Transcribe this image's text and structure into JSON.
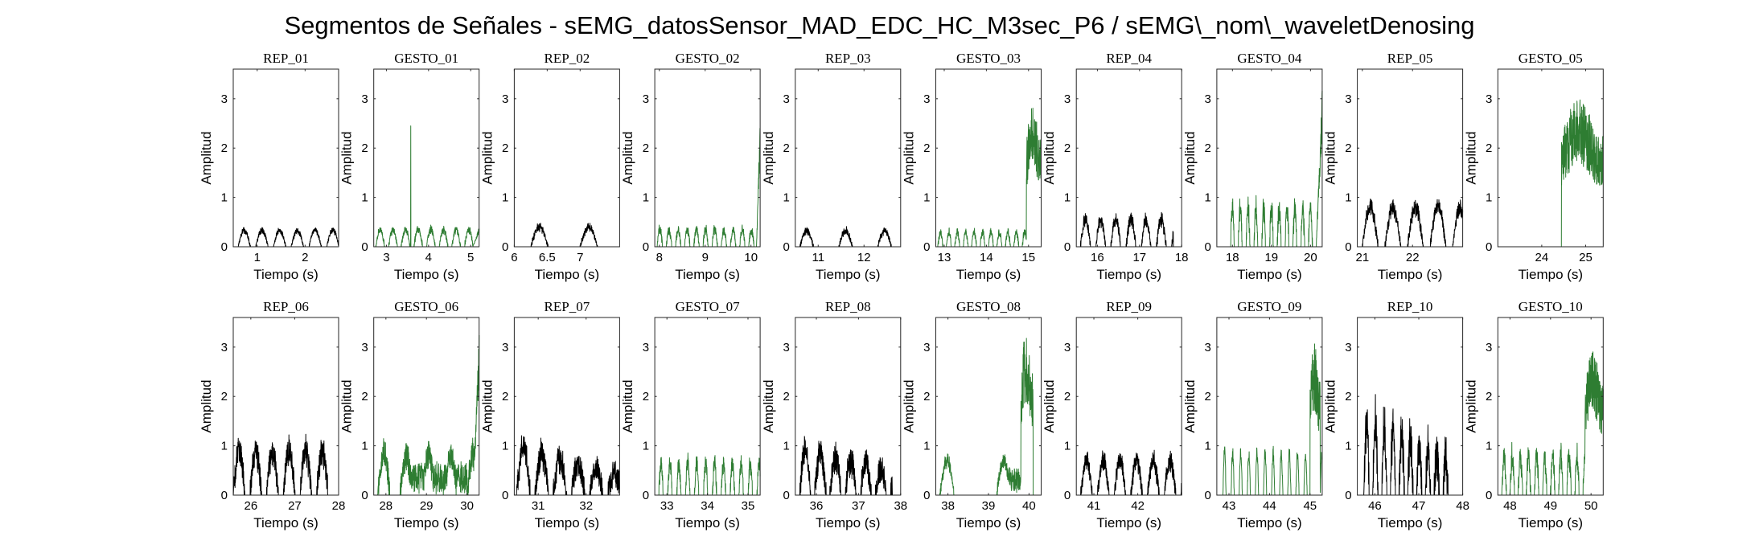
{
  "title": "Segmentos de Señales - sEMG_datosSensor_MAD_EDC_HC_M3sec_P6 / sEMG\\_nom\\_waveletDenosing",
  "colors": {
    "rep": "#000000",
    "gesto": "#2e7d32"
  },
  "chart_data": [
    {
      "type": "line",
      "title": "REP_01",
      "xlabel": "Tiempo (s)",
      "ylabel": "Amplitud",
      "xlim": [
        0.5,
        2.7
      ],
      "ylim": [
        0,
        3.6
      ],
      "xticks": [
        1,
        2
      ],
      "yticks": [
        0,
        1,
        2,
        3
      ],
      "series": [
        {
          "name": "",
          "color": "rep",
          "pattern": {
            "kind": "pulses",
            "start": 0.6,
            "period": 0.37,
            "amp": 0.33,
            "duty": 0.7,
            "noise": 0.03
          }
        }
      ]
    },
    {
      "type": "line",
      "title": "GESTO_01",
      "xlabel": "Tiempo (s)",
      "ylabel": "Amplitud",
      "xlim": [
        2.7,
        5.2
      ],
      "ylim": [
        0,
        3.6
      ],
      "xticks": [
        3,
        4,
        5
      ],
      "yticks": [
        0,
        1,
        2,
        3
      ],
      "series": [
        {
          "name": "",
          "color": "gesto",
          "pattern": {
            "kind": "pulses",
            "start": 2.75,
            "period": 0.3,
            "amp": 0.35,
            "duty": 0.7,
            "noise": 0.05,
            "spikes": [
              [
                3.58,
                2.45
              ]
            ],
            "tailStart": 5.05,
            "tailAmp": 0.4
          }
        }
      ]
    },
    {
      "type": "line",
      "title": "REP_02",
      "xlabel": "Tiempo (s)",
      "ylabel": "Amplitud",
      "xlim": [
        6.0,
        7.6
      ],
      "ylim": [
        0,
        3.6
      ],
      "xticks": [
        6,
        6.5,
        7
      ],
      "yticks": [
        0,
        1,
        2,
        3
      ],
      "series": [
        {
          "name": "",
          "color": "rep",
          "pattern": {
            "kind": "pulses",
            "start": 6.25,
            "period": 0.75,
            "amp": 0.4,
            "duty": 0.35,
            "noise": 0.05
          }
        }
      ]
    },
    {
      "type": "line",
      "title": "GESTO_02",
      "xlabel": "Tiempo (s)",
      "ylabel": "Amplitud",
      "xlim": [
        7.9,
        10.2
      ],
      "ylim": [
        0,
        3.6
      ],
      "xticks": [
        8,
        9,
        10
      ],
      "yticks": [
        0,
        1,
        2,
        3
      ],
      "series": [
        {
          "name": "",
          "color": "gesto",
          "pattern": {
            "kind": "pulses",
            "start": 7.95,
            "period": 0.2,
            "amp": 0.35,
            "duty": 0.6,
            "noise": 0.07,
            "tailStart": 10.12,
            "tailAmp": 2.7
          }
        }
      ]
    },
    {
      "type": "line",
      "title": "REP_03",
      "xlabel": "Tiempo (s)",
      "ylabel": "Amplitud",
      "xlim": [
        10.5,
        12.8
      ],
      "ylim": [
        0,
        3.6
      ],
      "xticks": [
        11,
        12
      ],
      "yticks": [
        0,
        1,
        2,
        3
      ],
      "series": [
        {
          "name": "",
          "color": "rep",
          "pattern": {
            "kind": "pulses",
            "start": 10.6,
            "period": 0.85,
            "amp": 0.33,
            "duty": 0.35,
            "noise": 0.05
          }
        }
      ]
    },
    {
      "type": "line",
      "title": "GESTO_03",
      "xlabel": "Tiempo (s)",
      "ylabel": "Amplitud",
      "xlim": [
        12.8,
        15.3
      ],
      "ylim": [
        0,
        3.6
      ],
      "xticks": [
        13,
        14,
        15
      ],
      "yticks": [
        0,
        1,
        2,
        3
      ],
      "series": [
        {
          "name": "",
          "color": "gesto",
          "pattern": {
            "kind": "pulses",
            "start": 12.85,
            "period": 0.2,
            "amp": 0.3,
            "duty": 0.6,
            "noise": 0.06,
            "burst": [
              14.95,
              15.3,
              2.9
            ]
          }
        }
      ]
    },
    {
      "type": "line",
      "title": "REP_04",
      "xlabel": "Tiempo (s)",
      "ylabel": "Amplitud",
      "xlim": [
        15.5,
        18.0
      ],
      "ylim": [
        0,
        3.6
      ],
      "xticks": [
        16,
        17,
        18
      ],
      "yticks": [
        0,
        1,
        2,
        3
      ],
      "series": [
        {
          "name": "",
          "color": "rep",
          "pattern": {
            "kind": "pulses",
            "start": 15.6,
            "period": 0.36,
            "amp": 0.55,
            "duty": 0.65,
            "noise": 0.1,
            "end": 17.8
          }
        }
      ]
    },
    {
      "type": "line",
      "title": "GESTO_04",
      "xlabel": "Tiempo (s)",
      "ylabel": "Amplitud",
      "xlim": [
        17.6,
        20.3
      ],
      "ylim": [
        0,
        3.6
      ],
      "xticks": [
        18,
        19,
        20
      ],
      "yticks": [
        0,
        1,
        2,
        3
      ],
      "series": [
        {
          "name": "",
          "color": "gesto",
          "pattern": {
            "kind": "pulses",
            "start": 17.95,
            "period": 0.2,
            "amp": 0.8,
            "duty": 0.5,
            "noise": 0.2,
            "tailStart": 20.15,
            "tailAmp": 3.3
          }
        }
      ]
    },
    {
      "type": "line",
      "title": "REP_05",
      "xlabel": "Tiempo (s)",
      "ylabel": "Amplitud",
      "xlim": [
        20.9,
        23.0
      ],
      "ylim": [
        0,
        3.6
      ],
      "xticks": [
        21,
        22
      ],
      "yticks": [
        0,
        1,
        2,
        3
      ],
      "series": [
        {
          "name": "",
          "color": "rep",
          "pattern": {
            "kind": "pulses",
            "start": 21.0,
            "period": 0.45,
            "amp": 0.8,
            "duty": 0.7,
            "noise": 0.1
          }
        }
      ]
    },
    {
      "type": "line",
      "title": "GESTO_05",
      "xlabel": "Tiempo (s)",
      "ylabel": "Amplitud",
      "xlim": [
        23.0,
        25.4
      ],
      "ylim": [
        0,
        3.6
      ],
      "xticks": [
        24,
        25
      ],
      "yticks": [
        0,
        1,
        2,
        3
      ],
      "series": [
        {
          "name": "",
          "color": "gesto",
          "pattern": {
            "kind": "pulses",
            "start": 23.0,
            "period": 0.3,
            "amp": 0.0,
            "duty": 0.5,
            "noise": 0.0,
            "burst": [
              24.45,
              25.4,
              3.0
            ]
          }
        }
      ]
    },
    {
      "type": "line",
      "title": "REP_06",
      "xlabel": "Tiempo (s)",
      "ylabel": "Amplitud",
      "xlim": [
        25.6,
        28.0
      ],
      "ylim": [
        0,
        3.6
      ],
      "xticks": [
        26,
        27,
        28
      ],
      "yticks": [
        0,
        1,
        2,
        3
      ],
      "series": [
        {
          "name": "",
          "color": "rep",
          "pattern": {
            "kind": "pulses",
            "start": 25.6,
            "period": 0.38,
            "amp": 0.9,
            "duty": 0.7,
            "noise": 0.25,
            "end": 27.75
          }
        }
      ]
    },
    {
      "type": "line",
      "title": "GESTO_06",
      "xlabel": "Tiempo (s)",
      "ylabel": "Amplitud",
      "xlim": [
        27.7,
        30.3
      ],
      "ylim": [
        0,
        3.6
      ],
      "xticks": [
        28,
        29,
        30
      ],
      "yticks": [
        0,
        1,
        2,
        3
      ],
      "series": [
        {
          "name": "",
          "color": "gesto",
          "pattern": {
            "kind": "pulses",
            "start": 27.8,
            "period": 0.55,
            "amp": 0.8,
            "duty": 0.55,
            "noise": 0.25,
            "noiseBand": [
              28.6,
              30.0,
              0.6
            ],
            "tailStart": 30.15,
            "tailAmp": 3.3
          }
        }
      ]
    },
    {
      "type": "line",
      "title": "REP_07",
      "xlabel": "Tiempo (s)",
      "ylabel": "Amplitud",
      "xlim": [
        30.5,
        32.7
      ],
      "ylim": [
        0,
        3.6
      ],
      "xticks": [
        31,
        32
      ],
      "yticks": [
        0,
        1,
        2,
        3
      ],
      "series": [
        {
          "name": "",
          "color": "rep",
          "pattern": {
            "kind": "pulses",
            "start": 30.55,
            "period": 0.38,
            "amp": 1.0,
            "duty": 0.75,
            "noise": 0.25,
            "decay": 0.85
          }
        }
      ]
    },
    {
      "type": "line",
      "title": "GESTO_07",
      "xlabel": "Tiempo (s)",
      "ylabel": "Amplitud",
      "xlim": [
        32.7,
        35.3
      ],
      "ylim": [
        0,
        3.6
      ],
      "xticks": [
        33,
        34,
        35
      ],
      "yticks": [
        0,
        1,
        2,
        3
      ],
      "series": [
        {
          "name": "",
          "color": "gesto",
          "pattern": {
            "kind": "pulses",
            "start": 32.8,
            "period": 0.22,
            "amp": 0.65,
            "duty": 0.5,
            "noise": 0.15
          }
        }
      ]
    },
    {
      "type": "line",
      "title": "REP_08",
      "xlabel": "Tiempo (s)",
      "ylabel": "Amplitud",
      "xlim": [
        35.5,
        38.0
      ],
      "ylim": [
        0,
        3.6
      ],
      "xticks": [
        36,
        37,
        38
      ],
      "yticks": [
        0,
        1,
        2,
        3
      ],
      "series": [
        {
          "name": "",
          "color": "rep",
          "pattern": {
            "kind": "pulses",
            "start": 35.6,
            "period": 0.36,
            "amp": 0.95,
            "duty": 0.75,
            "noise": 0.25,
            "decay": 0.9,
            "end": 37.8
          }
        }
      ]
    },
    {
      "type": "line",
      "title": "GESTO_08",
      "xlabel": "Tiempo (s)",
      "ylabel": "Amplitud",
      "xlim": [
        37.7,
        40.3
      ],
      "ylim": [
        0,
        3.6
      ],
      "xticks": [
        38,
        39,
        40
      ],
      "yticks": [
        0,
        1,
        2,
        3
      ],
      "series": [
        {
          "name": "",
          "color": "gesto",
          "pattern": {
            "kind": "pulses",
            "start": 37.8,
            "period": 1.4,
            "amp": 0.7,
            "duty": 0.25,
            "noise": 0.1,
            "noiseBand": [
              39.3,
              39.85,
              0.5
            ],
            "burst": [
              39.8,
              40.1,
              3.3
            ]
          }
        }
      ]
    },
    {
      "type": "line",
      "title": "REP_09",
      "xlabel": "Tiempo (s)",
      "ylabel": "Amplitud",
      "xlim": [
        40.6,
        43.0
      ],
      "ylim": [
        0,
        3.6
      ],
      "xticks": [
        41,
        42
      ],
      "yticks": [
        0,
        1,
        2,
        3
      ],
      "series": [
        {
          "name": "",
          "color": "rep",
          "pattern": {
            "kind": "pulses",
            "start": 40.7,
            "period": 0.38,
            "amp": 0.7,
            "duty": 0.7,
            "noise": 0.15
          }
        }
      ]
    },
    {
      "type": "line",
      "title": "GESTO_09",
      "xlabel": "Tiempo (s)",
      "ylabel": "Amplitud",
      "xlim": [
        42.7,
        45.3
      ],
      "ylim": [
        0,
        3.6
      ],
      "xticks": [
        43,
        44,
        45
      ],
      "yticks": [
        0,
        1,
        2,
        3
      ],
      "series": [
        {
          "name": "",
          "color": "gesto",
          "pattern": {
            "kind": "pulses",
            "start": 42.85,
            "period": 0.2,
            "amp": 0.85,
            "duty": 0.4,
            "noise": 0.05,
            "burst": [
              45.0,
              45.25,
              3.1
            ]
          }
        }
      ]
    },
    {
      "type": "line",
      "title": "REP_10",
      "xlabel": "Tiempo (s)",
      "ylabel": "Amplitud",
      "xlim": [
        45.6,
        48.0
      ],
      "ylim": [
        0,
        3.6
      ],
      "xticks": [
        46,
        47,
        48
      ],
      "yticks": [
        0,
        1,
        2,
        3
      ],
      "series": [
        {
          "name": "",
          "color": "rep",
          "pattern": {
            "kind": "pulses",
            "start": 45.75,
            "period": 0.2,
            "amp": 1.6,
            "duty": 0.6,
            "noise": 0.45,
            "decay": 0.93,
            "end": 47.7
          }
        }
      ]
    },
    {
      "type": "line",
      "title": "GESTO_10",
      "xlabel": "Tiempo (s)",
      "ylabel": "Amplitud",
      "xlim": [
        47.7,
        50.3
      ],
      "ylim": [
        0,
        3.6
      ],
      "xticks": [
        48,
        49,
        50
      ],
      "yticks": [
        0,
        1,
        2,
        3
      ],
      "series": [
        {
          "name": "",
          "color": "gesto",
          "pattern": {
            "kind": "pulses",
            "start": 47.8,
            "period": 0.2,
            "amp": 0.8,
            "duty": 0.55,
            "noise": 0.2,
            "burst": [
              49.85,
              50.3,
              3.0
            ]
          }
        }
      ]
    }
  ]
}
